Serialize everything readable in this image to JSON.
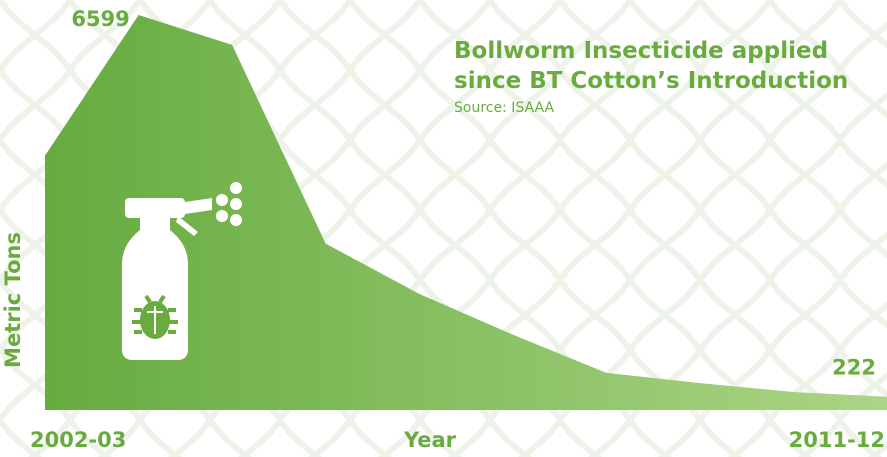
{
  "chart_data": {
    "type": "area",
    "title": "Bollworm Insecticide applied since BT Cotton’s Introduction",
    "subtitle": "Source: ISAAA",
    "x_label": "Year",
    "y_label": "Metric Tons",
    "categories": [
      "2002-03",
      null,
      null,
      null,
      null,
      null,
      null,
      null,
      null,
      "2011-12"
    ],
    "values": [
      4250,
      6599,
      6100,
      2780,
      1940,
      1260,
      620,
      450,
      300,
      222
    ],
    "labeled_points": [
      1,
      9
    ],
    "ylim": [
      0,
      6850
    ],
    "color_start": "#66ab40",
    "color_end": "#acd585"
  }
}
